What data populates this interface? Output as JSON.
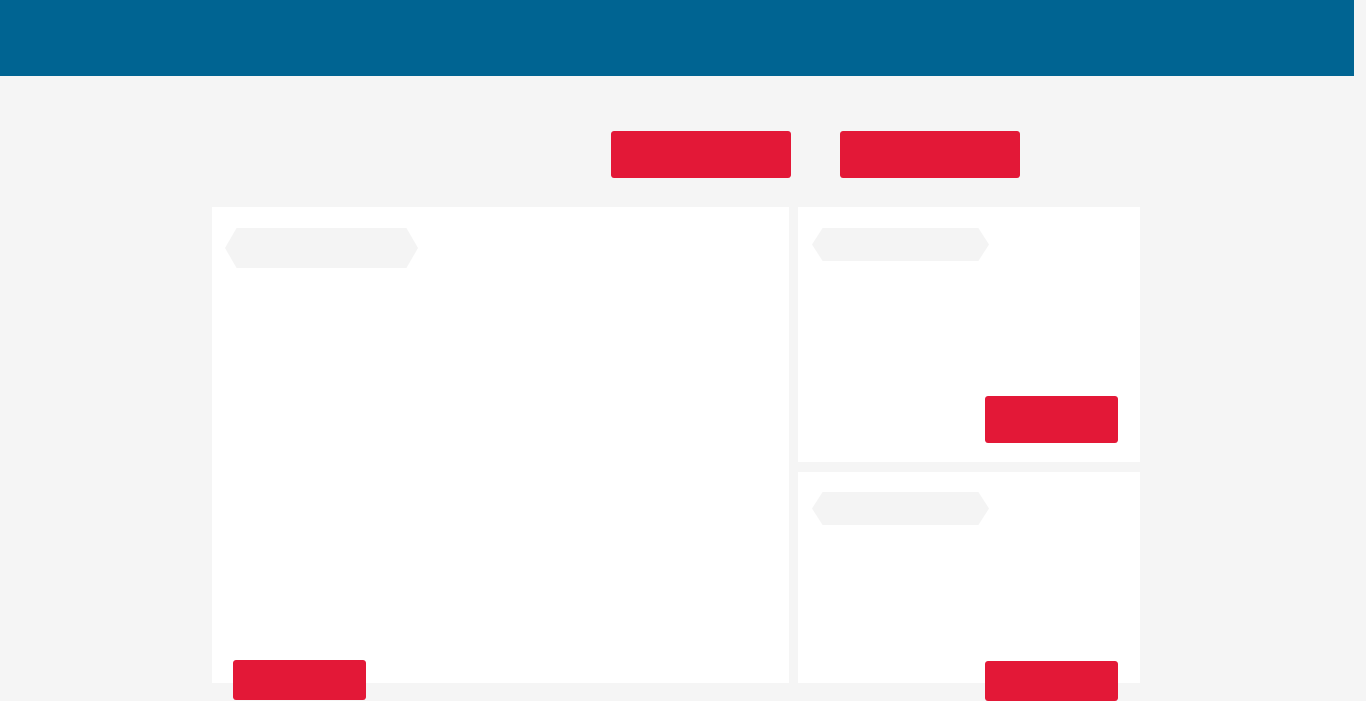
{
  "header": {
    "title": "",
    "background_color": "#006492"
  },
  "toolbar": {
    "primary_button_label": "",
    "secondary_button_label": "",
    "accent_color": "#e31837"
  },
  "main_panel": {
    "heading": "",
    "action_button_label": ""
  },
  "side_panels": [
    {
      "heading": "",
      "action_button_label": ""
    },
    {
      "heading": "",
      "action_button_label": ""
    }
  ],
  "state": "loading-skeleton"
}
